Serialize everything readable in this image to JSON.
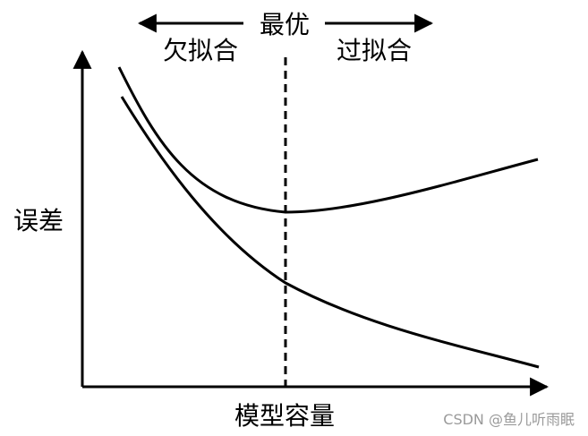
{
  "labels": {
    "optimal": "最优",
    "underfitting": "欠拟合",
    "overfitting": "过拟合",
    "y_axis": "误差",
    "x_axis": "模型容量"
  },
  "watermark": "CSDN @鱼儿听雨眠",
  "colors": {
    "stroke": "#000000",
    "background": "#ffffff",
    "watermark": "#9a9a9a"
  }
}
